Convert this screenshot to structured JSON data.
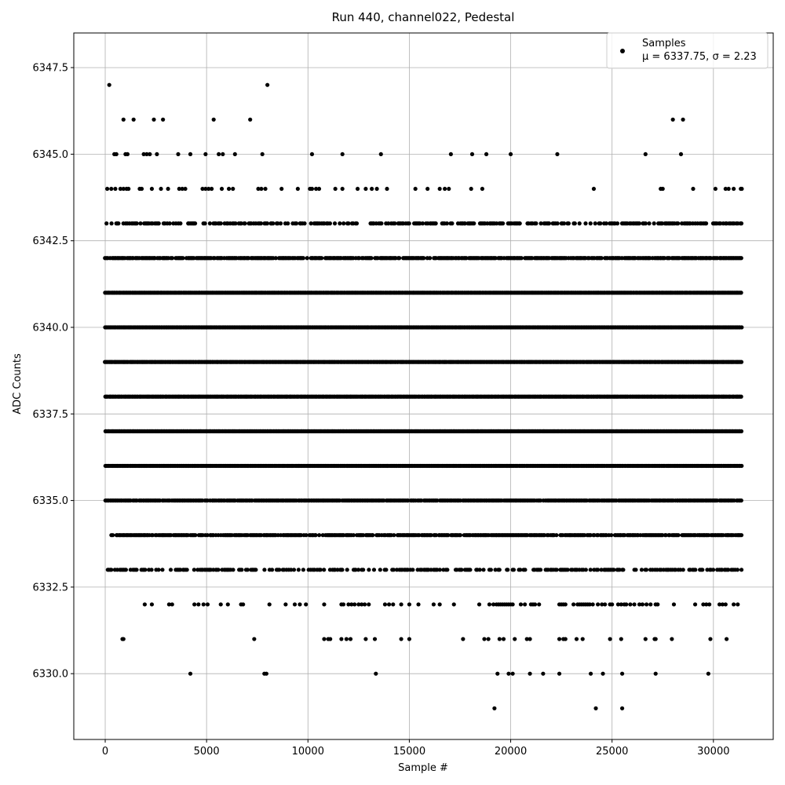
{
  "chart_data": {
    "type": "scatter",
    "title": "Run 440, channel022, Pedestal",
    "xlabel": "Sample #",
    "ylabel": "ADC Counts",
    "xlim": [
      -1550,
      32950
    ],
    "ylim": [
      6328.1,
      6348.5
    ],
    "xticks": [
      0,
      5000,
      10000,
      15000,
      20000,
      25000,
      30000
    ],
    "xtick_labels": [
      "0",
      "5000",
      "10000",
      "15000",
      "20000",
      "25000",
      "30000"
    ],
    "yticks": [
      6330.0,
      6332.5,
      6335.0,
      6337.5,
      6340.0,
      6342.5,
      6345.0,
      6347.5
    ],
    "ytick_labels": [
      "6330.0",
      "6332.5",
      "6335.0",
      "6337.5",
      "6340.0",
      "6342.5",
      "6345.0",
      "6347.5"
    ],
    "grid": true,
    "legend": {
      "position": "top-right",
      "entries": [
        {
          "name": "Samples",
          "stats": "μ = 6337.75, σ = 2.23"
        }
      ]
    },
    "marker_color": "#000000",
    "series": [
      {
        "name": "Samples",
        "levels": [
          {
            "y": 6347,
            "x": [
              200,
              8000
            ]
          },
          {
            "y": 6346,
            "x": [
              900,
              1400,
              2400,
              2850,
              5350,
              7150,
              28000,
              28500
            ]
          },
          {
            "y": 6345,
            "x": [
              450,
              550,
              1000,
              1100,
              1900,
              2050,
              2200,
              2550,
              3600,
              4200,
              4950,
              5600,
              5800,
              6400,
              7750,
              10200,
              11700,
              13600,
              17050,
              18100,
              18800,
              20000,
              22300,
              26650,
              28400
            ]
          },
          {
            "y": 6344,
            "x": [
              100,
              300,
              500,
              750,
              900,
              1050,
              1150,
              1700,
              1800,
              2300,
              2750,
              3100,
              3650,
              3800,
              3950,
              4800,
              4950,
              5100,
              5250,
              5750,
              6100,
              6300,
              7550,
              7700,
              7900,
              8700,
              9500,
              10100,
              10200,
              10400,
              10550,
              11350,
              11700,
              12450,
              12850,
              13150,
              13400,
              13900,
              15300,
              15900,
              16500,
              16750,
              16950,
              18050,
              18600,
              24100,
              27400,
              27500,
              29000,
              30100,
              30600,
              30750,
              31000,
              31350,
              31400
            ]
          },
          {
            "y": 6343,
            "x_range": [
              0,
              31400
            ],
            "density": 0.55
          },
          {
            "y": 6342,
            "x_range": [
              0,
              31400
            ],
            "density": 0.85
          },
          {
            "y": 6341,
            "x_range": [
              0,
              31400
            ],
            "density": 1.0
          },
          {
            "y": 6340,
            "x_range": [
              0,
              31400
            ],
            "density": 1.0
          },
          {
            "y": 6339,
            "x_range": [
              0,
              31400
            ],
            "density": 1.0
          },
          {
            "y": 6338,
            "x_range": [
              0,
              31400
            ],
            "density": 1.0
          },
          {
            "y": 6337,
            "x_range": [
              0,
              31400
            ],
            "density": 1.0
          },
          {
            "y": 6336,
            "x_range": [
              0,
              31400
            ],
            "density": 1.0
          },
          {
            "y": 6335,
            "x_range": [
              0,
              31400
            ],
            "density": 0.95
          },
          {
            "y": 6334,
            "x_range": [
              250,
              31400
            ],
            "density": 0.85
          },
          {
            "y": 6333,
            "x_range": [
              0,
              31400
            ],
            "density": 0.5
          },
          {
            "y": 6332,
            "x": [
              1950,
              2300,
              3150,
              3300,
              4400,
              4600,
              4850,
              5050,
              5700,
              6050,
              6700,
              6800,
              8100,
              8900,
              9350,
              9600,
              9900,
              10800,
              11650,
              11750,
              12000,
              12150,
              12300,
              12500,
              12650,
              12800,
              13000,
              13800,
              14000,
              14200,
              14600,
              15000,
              15450,
              16200,
              16500,
              17200,
              18450,
              18950,
              19150,
              19300,
              19400,
              19500,
              19600,
              19700,
              19800,
              19900,
              20000,
              20100,
              20500,
              20700,
              21000,
              21100,
              21200,
              21400,
              22400,
              22500,
              22600,
              22700,
              23100,
              23300,
              23400,
              23500,
              23600,
              23700,
              23800,
              23900,
              24050,
              24300,
              24500,
              24650,
              24900,
              25000,
              25300,
              25450,
              25600,
              25700,
              25900,
              26100,
              26350,
              26500,
              26700,
              26900,
              27150,
              27250,
              28050,
              29100,
              29500,
              29650,
              29800,
              30300,
              30450,
              30600,
              31000,
              31200
            ]
          },
          {
            "y": 6331,
            "x": [
              850,
              900,
              7350,
              10800,
              11000,
              11100,
              11650,
              11900,
              12100,
              12850,
              13300,
              14600,
              15000,
              17650,
              18700,
              18900,
              19450,
              19650,
              20200,
              20800,
              20950,
              22400,
              22600,
              22700,
              23250,
              23550,
              24900,
              25450,
              26650,
              27100,
              27150,
              27950,
              29850,
              30650
            ]
          },
          {
            "y": 6330,
            "x": [
              4200,
              7850,
              7950,
              13350,
              19350,
              19900,
              20100,
              20950,
              21600,
              22400,
              23950,
              24550,
              25500,
              27150,
              29750
            ]
          },
          {
            "y": 6329,
            "x": [
              19200,
              24200,
              25500
            ]
          }
        ]
      }
    ]
  }
}
